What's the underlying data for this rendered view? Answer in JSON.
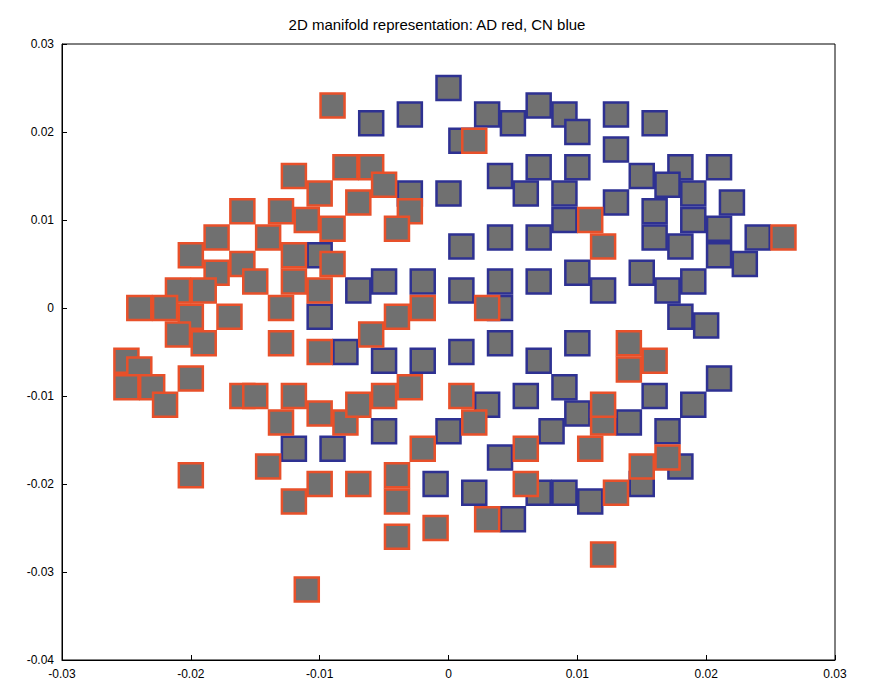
{
  "chart_data": {
    "type": "scatter",
    "title": "2D manifold representation: AD red, CN blue",
    "xlim": [
      -0.03,
      0.03
    ],
    "xticks": [
      -0.03,
      -0.02,
      -0.01,
      0,
      0.01,
      0.02,
      0.03
    ],
    "ylim": [
      -0.04,
      0.03
    ],
    "yticks": [
      -0.04,
      -0.03,
      -0.02,
      -0.01,
      0,
      0.01,
      0.02,
      0.03
    ],
    "grid": false,
    "marker": "square",
    "series": [
      {
        "name": "CN",
        "color": "#2e3192",
        "values": [
          [
            0.0,
            0.025
          ],
          [
            0.003,
            0.022
          ],
          [
            -0.003,
            0.022
          ],
          [
            -0.006,
            0.021
          ],
          [
            0.005,
            0.021
          ],
          [
            0.007,
            0.023
          ],
          [
            0.009,
            0.022
          ],
          [
            0.01,
            0.02
          ],
          [
            0.013,
            0.022
          ],
          [
            0.016,
            0.021
          ],
          [
            0.013,
            0.018
          ],
          [
            0.018,
            0.016
          ],
          [
            0.021,
            0.016
          ],
          [
            0.017,
            0.014
          ],
          [
            0.001,
            0.019
          ],
          [
            0.004,
            0.015
          ],
          [
            0.007,
            0.016
          ],
          [
            0.01,
            0.016
          ],
          [
            0.015,
            0.015
          ],
          [
            0.019,
            0.013
          ],
          [
            0.022,
            0.012
          ],
          [
            0.024,
            0.008
          ],
          [
            0.021,
            0.009
          ],
          [
            0.019,
            0.01
          ],
          [
            0.016,
            0.011
          ],
          [
            0.013,
            0.012
          ],
          [
            0.009,
            0.013
          ],
          [
            0.006,
            0.013
          ],
          [
            0.0,
            0.013
          ],
          [
            -0.003,
            0.013
          ],
          [
            0.001,
            0.007
          ],
          [
            0.004,
            0.008
          ],
          [
            0.007,
            0.008
          ],
          [
            0.009,
            0.01
          ],
          [
            0.016,
            0.008
          ],
          [
            0.018,
            0.007
          ],
          [
            0.021,
            0.006
          ],
          [
            0.023,
            0.005
          ],
          [
            0.019,
            0.003
          ],
          [
            0.017,
            0.002
          ],
          [
            0.015,
            0.004
          ],
          [
            0.012,
            0.002
          ],
          [
            0.01,
            0.004
          ],
          [
            0.007,
            0.003
          ],
          [
            0.004,
            0.003
          ],
          [
            0.001,
            0.002
          ],
          [
            -0.002,
            0.003
          ],
          [
            -0.005,
            0.003
          ],
          [
            -0.007,
            0.002
          ],
          [
            -0.01,
            -0.001
          ],
          [
            -0.008,
            -0.005
          ],
          [
            -0.005,
            -0.006
          ],
          [
            -0.002,
            -0.006
          ],
          [
            0.001,
            -0.005
          ],
          [
            0.004,
            -0.004
          ],
          [
            0.007,
            -0.006
          ],
          [
            0.01,
            -0.004
          ],
          [
            0.018,
            -0.001
          ],
          [
            0.02,
            -0.002
          ],
          [
            0.016,
            -0.01
          ],
          [
            0.019,
            -0.011
          ],
          [
            0.021,
            -0.008
          ],
          [
            0.009,
            -0.009
          ],
          [
            0.006,
            -0.01
          ],
          [
            0.003,
            -0.011
          ],
          [
            0.0,
            -0.014
          ],
          [
            0.004,
            -0.017
          ],
          [
            0.008,
            -0.014
          ],
          [
            0.01,
            -0.012
          ],
          [
            0.014,
            -0.013
          ],
          [
            0.017,
            -0.014
          ],
          [
            0.007,
            -0.021
          ],
          [
            0.009,
            -0.021
          ],
          [
            0.011,
            -0.022
          ],
          [
            0.005,
            -0.024
          ],
          [
            0.002,
            -0.021
          ],
          [
            -0.001,
            -0.02
          ],
          [
            -0.009,
            -0.016
          ],
          [
            -0.012,
            -0.016
          ],
          [
            -0.005,
            -0.014
          ],
          [
            0.015,
            -0.02
          ],
          [
            0.018,
            -0.018
          ],
          [
            0.004,
            0.0
          ],
          [
            -0.01,
            0.006
          ]
        ]
      },
      {
        "name": "AD",
        "color": "#e8502a",
        "values": [
          [
            -0.009,
            0.023
          ],
          [
            -0.012,
            0.015
          ],
          [
            -0.008,
            0.016
          ],
          [
            -0.006,
            0.016
          ],
          [
            -0.01,
            0.013
          ],
          [
            -0.007,
            0.012
          ],
          [
            -0.005,
            0.014
          ],
          [
            -0.003,
            0.011
          ],
          [
            -0.004,
            0.009
          ],
          [
            -0.009,
            0.009
          ],
          [
            -0.011,
            0.01
          ],
          [
            -0.013,
            0.011
          ],
          [
            -0.016,
            0.011
          ],
          [
            -0.018,
            0.008
          ],
          [
            -0.014,
            0.008
          ],
          [
            -0.012,
            0.006
          ],
          [
            -0.009,
            0.005
          ],
          [
            -0.016,
            0.005
          ],
          [
            -0.015,
            0.003
          ],
          [
            -0.012,
            0.003
          ],
          [
            -0.01,
            0.002
          ],
          [
            -0.018,
            0.004
          ],
          [
            -0.02,
            0.006
          ],
          [
            -0.021,
            0.002
          ],
          [
            -0.019,
            0.002
          ],
          [
            -0.017,
            -0.001
          ],
          [
            -0.02,
            -0.001
          ],
          [
            -0.022,
            0.0
          ],
          [
            -0.024,
            0.0
          ],
          [
            -0.021,
            -0.003
          ],
          [
            -0.019,
            -0.004
          ],
          [
            -0.025,
            -0.006
          ],
          [
            -0.024,
            -0.007
          ],
          [
            -0.025,
            -0.009
          ],
          [
            -0.023,
            -0.009
          ],
          [
            -0.022,
            -0.011
          ],
          [
            -0.02,
            -0.008
          ],
          [
            -0.013,
            -0.004
          ],
          [
            -0.016,
            -0.01
          ],
          [
            -0.015,
            -0.01
          ],
          [
            -0.012,
            -0.01
          ],
          [
            -0.013,
            -0.013
          ],
          [
            -0.01,
            -0.012
          ],
          [
            -0.008,
            -0.013
          ],
          [
            -0.007,
            -0.011
          ],
          [
            -0.005,
            -0.01
          ],
          [
            -0.003,
            -0.009
          ],
          [
            -0.01,
            -0.005
          ],
          [
            -0.004,
            -0.001
          ],
          [
            -0.002,
            0.0
          ],
          [
            0.003,
            0.0
          ],
          [
            0.001,
            -0.01
          ],
          [
            0.002,
            -0.013
          ],
          [
            -0.002,
            -0.016
          ],
          [
            -0.004,
            -0.019
          ],
          [
            -0.004,
            -0.022
          ],
          [
            -0.004,
            -0.026
          ],
          [
            -0.001,
            -0.025
          ],
          [
            0.003,
            -0.024
          ],
          [
            -0.007,
            -0.02
          ],
          [
            -0.01,
            -0.02
          ],
          [
            -0.012,
            -0.022
          ],
          [
            -0.014,
            -0.018
          ],
          [
            -0.02,
            -0.019
          ],
          [
            -0.011,
            -0.032
          ],
          [
            0.006,
            -0.016
          ],
          [
            0.011,
            -0.016
          ],
          [
            0.012,
            -0.028
          ],
          [
            0.012,
            -0.013
          ],
          [
            0.012,
            -0.011
          ],
          [
            0.014,
            -0.007
          ],
          [
            0.016,
            -0.006
          ],
          [
            0.014,
            -0.004
          ],
          [
            0.013,
            -0.021
          ],
          [
            0.015,
            -0.018
          ],
          [
            0.017,
            -0.017
          ],
          [
            0.011,
            0.01
          ],
          [
            0.012,
            0.007
          ],
          [
            0.026,
            0.008
          ],
          [
            0.002,
            0.019
          ],
          [
            0.006,
            -0.02
          ],
          [
            -0.006,
            -0.003
          ],
          [
            -0.013,
            0.0
          ]
        ]
      }
    ]
  }
}
